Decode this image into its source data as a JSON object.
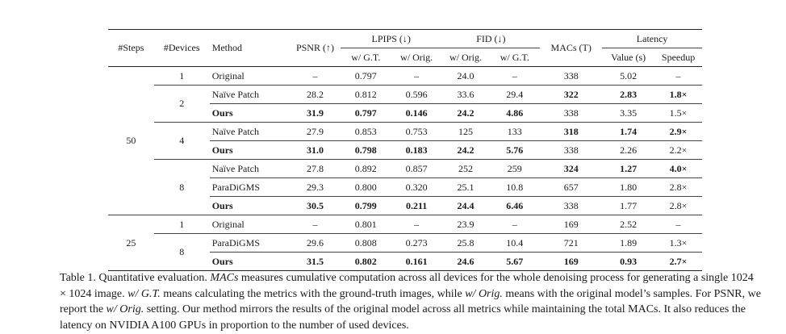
{
  "header": {
    "steps": "#Steps",
    "devices": "#Devices",
    "method": "Method",
    "psnr": "PSNR (↑)",
    "lpips": "LPIPS (↓)",
    "fid": "FID (↓)",
    "macs": "MACs (T)",
    "latency": "Latency",
    "lpips_gt": "w/ G.T.",
    "lpips_orig": "w/ Orig.",
    "fid_orig": "w/ Orig.",
    "fid_gt": "w/ G.T.",
    "lat_value": "Value (s)",
    "lat_speedup": "Speedup"
  },
  "groups": {
    "steps_50": "50",
    "steps_25": "25",
    "dev_1a": "1",
    "dev_2": "2",
    "dev_4": "4",
    "dev_8a": "8",
    "dev_1b": "1",
    "dev_8b": "8"
  },
  "rows": [
    {
      "method": "Original",
      "psnr": "–",
      "lpips_gt": "0.797",
      "lpips_orig": "–",
      "fid_orig": "24.0",
      "fid_gt": "–",
      "macs": "338",
      "lat": "5.02",
      "speed": "–"
    },
    {
      "method": "Naïve Patch",
      "psnr": "28.2",
      "lpips_gt": "0.812",
      "lpips_orig": "0.596",
      "fid_orig": "33.6",
      "fid_gt": "29.4",
      "macs": "322",
      "lat": "2.83",
      "speed": "1.8×"
    },
    {
      "method": "Ours",
      "psnr": "31.9",
      "lpips_gt": "0.797",
      "lpips_orig": "0.146",
      "fid_orig": "24.2",
      "fid_gt": "4.86",
      "macs": "338",
      "lat": "3.35",
      "speed": "1.5×"
    },
    {
      "method": "Naïve Patch",
      "psnr": "27.9",
      "lpips_gt": "0.853",
      "lpips_orig": "0.753",
      "fid_orig": "125",
      "fid_gt": "133",
      "macs": "318",
      "lat": "1.74",
      "speed": "2.9×"
    },
    {
      "method": "Ours",
      "psnr": "31.0",
      "lpips_gt": "0.798",
      "lpips_orig": "0.183",
      "fid_orig": "24.2",
      "fid_gt": "5.76",
      "macs": "338",
      "lat": "2.26",
      "speed": "2.2×"
    },
    {
      "method": "Naïve Patch",
      "psnr": "27.8",
      "lpips_gt": "0.892",
      "lpips_orig": "0.857",
      "fid_orig": "252",
      "fid_gt": "259",
      "macs": "324",
      "lat": "1.27",
      "speed": "4.0×"
    },
    {
      "method": "ParaDiGMS",
      "psnr": "29.3",
      "lpips_gt": "0.800",
      "lpips_orig": "0.320",
      "fid_orig": "25.1",
      "fid_gt": "10.8",
      "macs": "657",
      "lat": "1.80",
      "speed": "2.8×"
    },
    {
      "method": "Ours",
      "psnr": "30.5",
      "lpips_gt": "0.799",
      "lpips_orig": "0.211",
      "fid_orig": "24.4",
      "fid_gt": "6.46",
      "macs": "338",
      "lat": "1.77",
      "speed": "2.8×"
    },
    {
      "method": "Original",
      "psnr": "–",
      "lpips_gt": "0.801",
      "lpips_orig": "–",
      "fid_orig": "23.9",
      "fid_gt": "–",
      "macs": "169",
      "lat": "2.52",
      "speed": "–"
    },
    {
      "method": "ParaDiGMS",
      "psnr": "29.6",
      "lpips_gt": "0.808",
      "lpips_orig": "0.273",
      "fid_orig": "25.8",
      "fid_gt": "10.4",
      "macs": "721",
      "lat": "1.89",
      "speed": "1.3×"
    },
    {
      "method": "Ours",
      "psnr": "31.5",
      "lpips_gt": "0.802",
      "lpips_orig": "0.161",
      "fid_orig": "24.6",
      "fid_gt": "5.67",
      "macs": "169",
      "lat": "0.93",
      "speed": "2.7×"
    }
  ],
  "caption": {
    "label": "Table 1. Quantitative evaluation. ",
    "macs_term": "MACs",
    "part1": " measures cumulative computation across all devices for the whole denoising process for generating a single 1024 × 1024 image. ",
    "gt_term": "w/ G.T.",
    "part2": " means calculating the metrics with the ground-truth images, while ",
    "orig_term": "w/ Orig.",
    "part3": " means with the original model’s samples. For PSNR, we report the ",
    "orig_term2": "w/ Orig.",
    "part4": " setting. Our method mirrors the results of the original model across all metrics while maintaining the total MACs. It also reduces the latency on NVIDIA A100 GPUs in proportion to the number of used devices."
  }
}
